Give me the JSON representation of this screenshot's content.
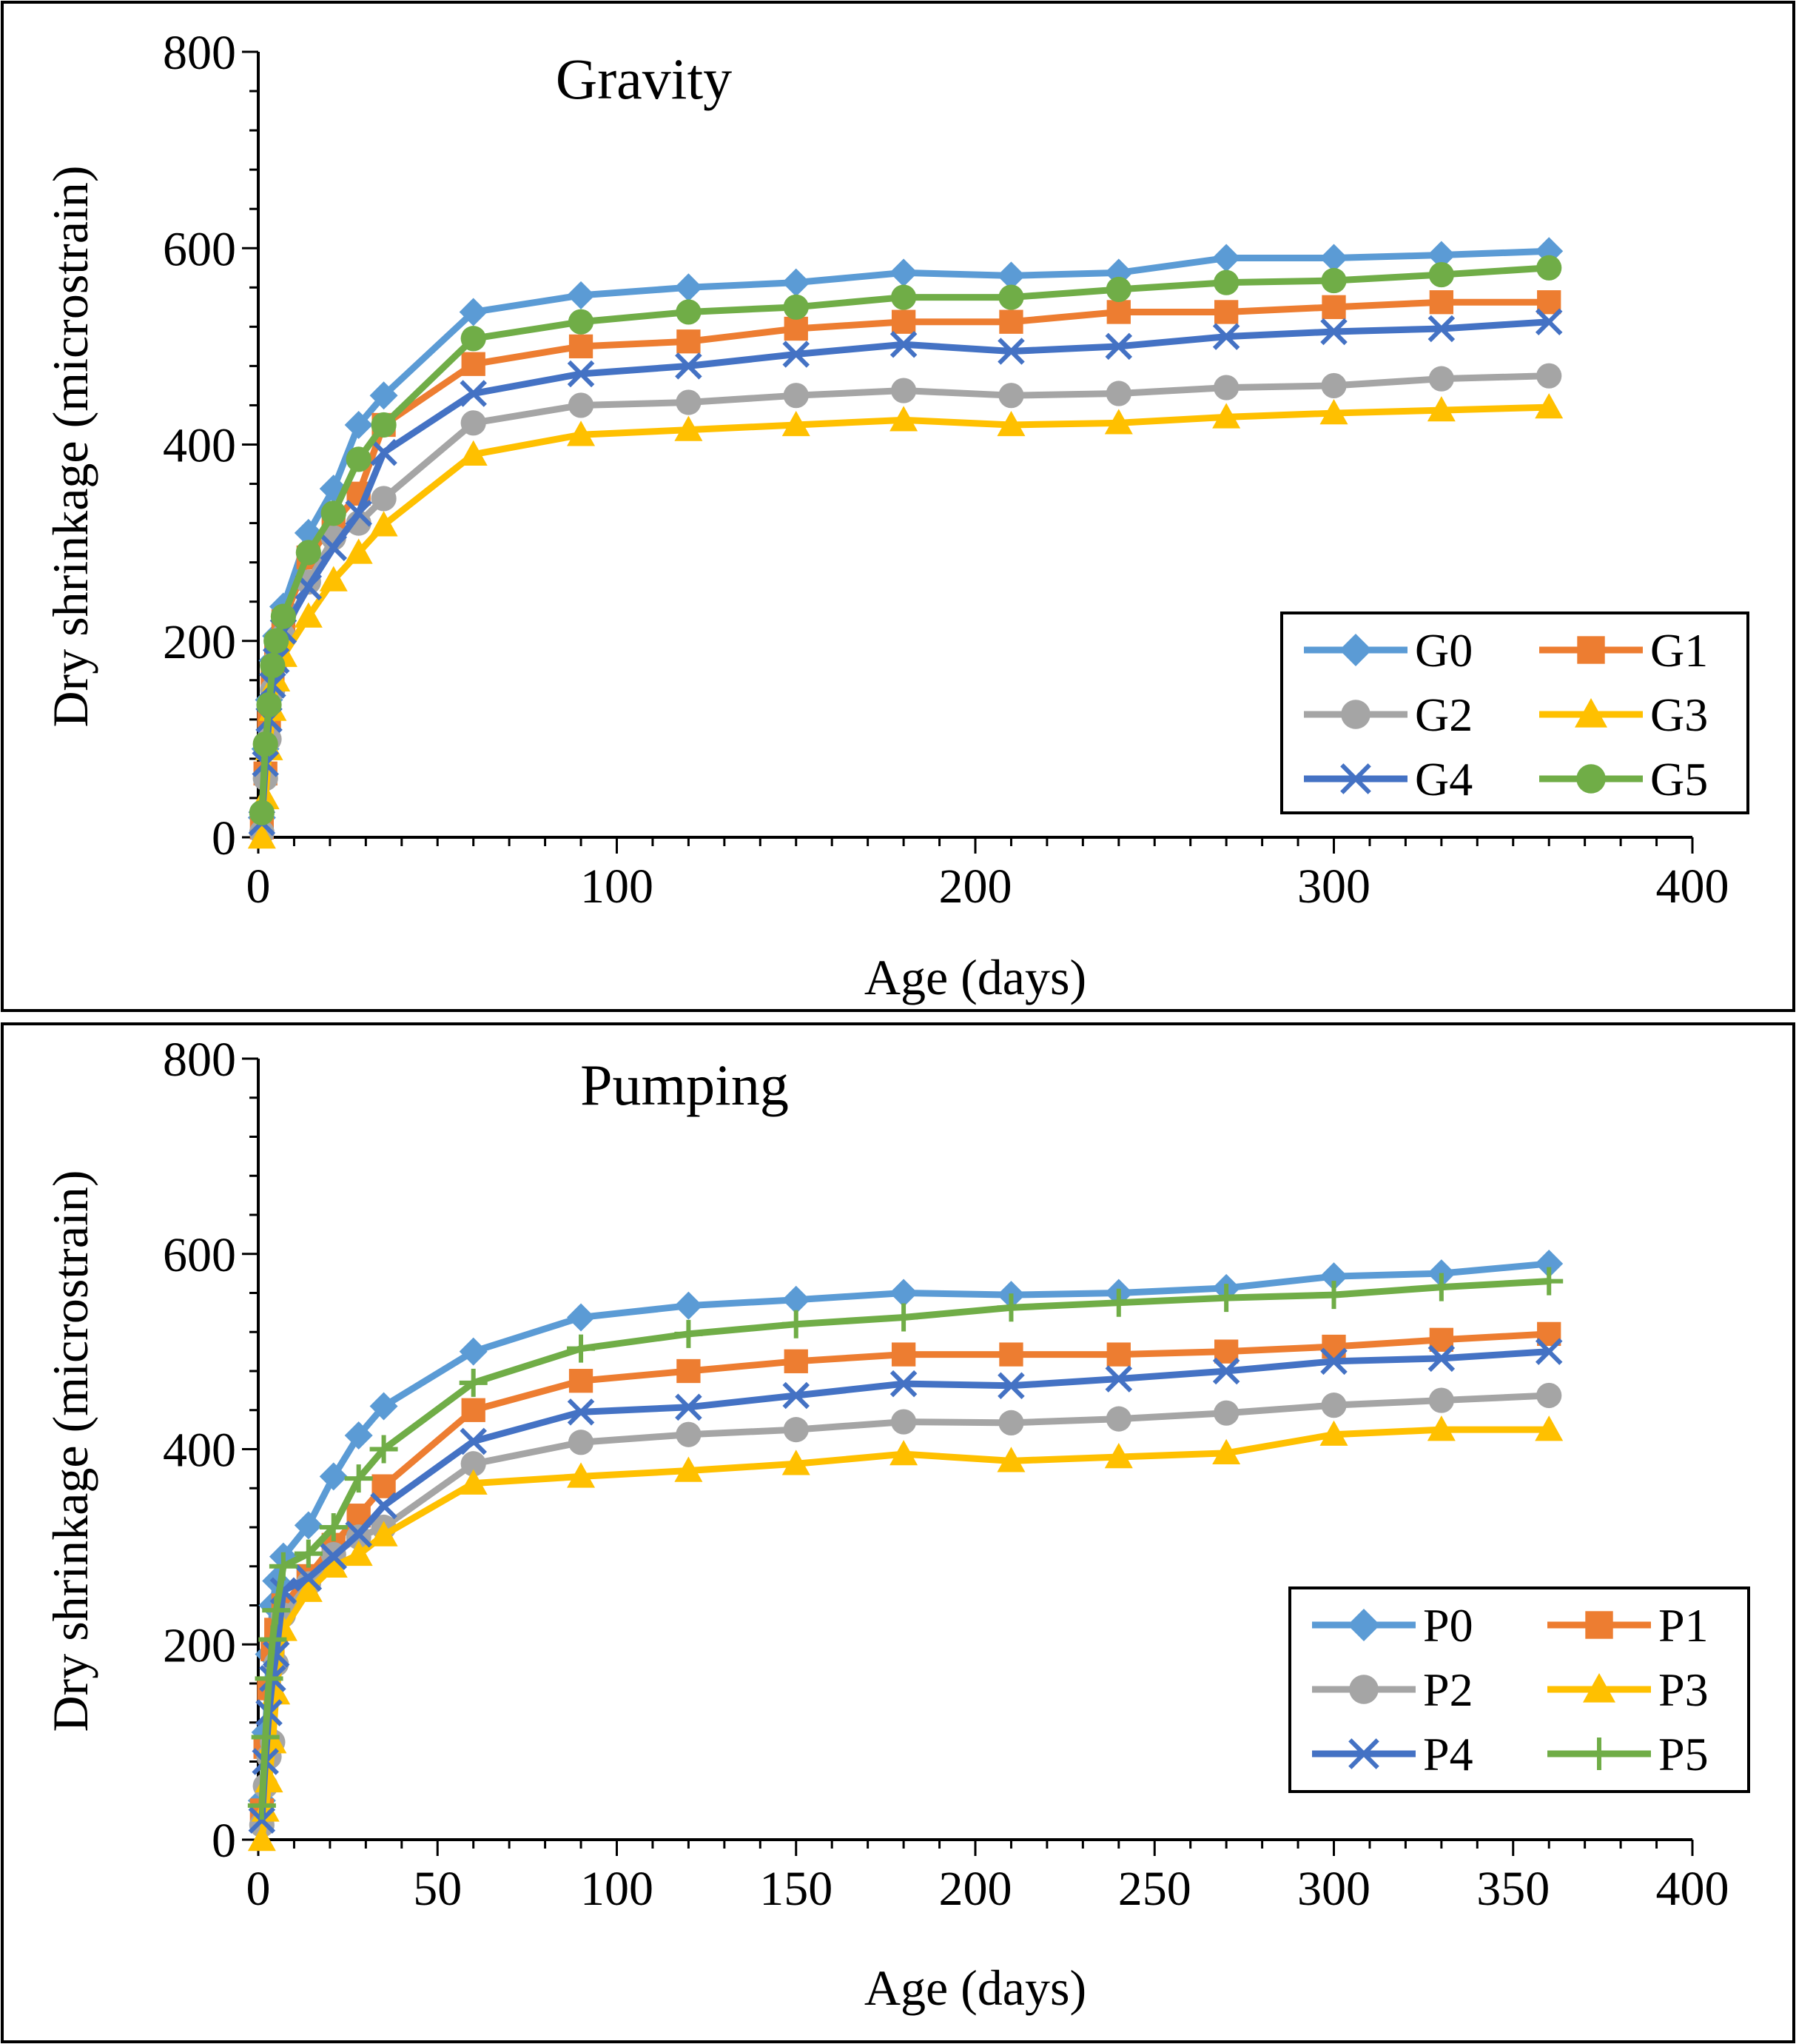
{
  "chart_data": [
    {
      "type": "line",
      "title": "Gravity",
      "xlabel": "Age (days)",
      "ylabel": "Dry shrinkage (microstrain)",
      "xlim": [
        0,
        400
      ],
      "ylim": [
        0,
        800
      ],
      "xticks": [
        0,
        100,
        200,
        300,
        400
      ],
      "yticks": [
        0,
        200,
        400,
        600,
        800
      ],
      "xtick_labels": [
        "0",
        "100",
        "200",
        "300",
        "400"
      ],
      "ytick_labels": [
        "0",
        "200",
        "400",
        "600",
        "800"
      ],
      "grid": false,
      "legend_position": "bottom-right",
      "x": [
        1,
        2,
        3,
        4,
        5,
        7,
        14,
        21,
        28,
        35,
        60,
        90,
        120,
        150,
        180,
        210,
        240,
        270,
        300,
        330,
        360
      ],
      "series": [
        {
          "name": "G0",
          "color": "#5B9BD5",
          "marker": "diamond",
          "values": [
            20,
            90,
            140,
            180,
            205,
            235,
            310,
            355,
            420,
            450,
            535,
            552,
            560,
            565,
            575,
            572,
            575,
            590,
            590,
            593,
            597
          ]
        },
        {
          "name": "G1",
          "color": "#ED7D31",
          "marker": "square",
          "values": [
            10,
            65,
            120,
            165,
            190,
            220,
            285,
            320,
            350,
            420,
            482,
            500,
            505,
            518,
            525,
            525,
            535,
            535,
            540,
            545,
            545
          ]
        },
        {
          "name": "G2",
          "color": "#A5A5A5",
          "marker": "circle",
          "values": [
            5,
            60,
            100,
            150,
            180,
            205,
            260,
            305,
            320,
            345,
            422,
            440,
            443,
            450,
            455,
            450,
            452,
            458,
            460,
            467,
            470
          ]
        },
        {
          "name": "G3",
          "color": "#FFC000",
          "marker": "triangle",
          "values": [
            0,
            40,
            90,
            130,
            160,
            185,
            225,
            262,
            290,
            318,
            390,
            410,
            415,
            420,
            425,
            420,
            422,
            428,
            432,
            435,
            438
          ]
        },
        {
          "name": "G4",
          "color": "#4472C4",
          "marker": "x",
          "values": [
            15,
            75,
            120,
            155,
            180,
            210,
            255,
            295,
            330,
            392,
            452,
            472,
            480,
            492,
            502,
            495,
            500,
            510,
            515,
            518,
            525
          ]
        },
        {
          "name": "G5",
          "color": "#70AD47",
          "marker": "circle",
          "values": [
            25,
            95,
            135,
            175,
            200,
            225,
            290,
            330,
            385,
            420,
            508,
            525,
            535,
            540,
            550,
            550,
            558,
            565,
            567,
            573,
            580
          ]
        }
      ]
    },
    {
      "type": "line",
      "title": "Pumping",
      "xlabel": "Age (days)",
      "ylabel": "Dry shrinkage (microstrain)",
      "xlim": [
        0,
        400
      ],
      "ylim": [
        0,
        800
      ],
      "xticks": [
        0,
        50,
        100,
        150,
        200,
        250,
        300,
        350,
        400
      ],
      "yticks": [
        0,
        200,
        400,
        600,
        800
      ],
      "xtick_labels": [
        "0",
        "50",
        "100",
        "150",
        "200",
        "250",
        "300",
        "350",
        "400"
      ],
      "ytick_labels": [
        "0",
        "200",
        "400",
        "600",
        "800"
      ],
      "grid": false,
      "legend_position": "bottom-right",
      "x": [
        1,
        2,
        3,
        4,
        5,
        7,
        14,
        21,
        28,
        35,
        60,
        90,
        120,
        150,
        180,
        210,
        240,
        270,
        300,
        330,
        360
      ],
      "series": [
        {
          "name": "P0",
          "color": "#5B9BD5",
          "marker": "diamond",
          "values": [
            40,
            110,
            190,
            240,
            265,
            290,
            322,
            372,
            414,
            444,
            500,
            535,
            547,
            553,
            560,
            558,
            560,
            565,
            577,
            580,
            590
          ]
        },
        {
          "name": "P1",
          "color": "#ED7D31",
          "marker": "square",
          "values": [
            30,
            95,
            155,
            195,
            215,
            240,
            270,
            302,
            332,
            362,
            440,
            470,
            480,
            490,
            497,
            497,
            497,
            500,
            505,
            512,
            518
          ]
        },
        {
          "name": "P2",
          "color": "#A5A5A5",
          "marker": "circle",
          "values": [
            15,
            55,
            85,
            100,
            180,
            230,
            262,
            292,
            310,
            320,
            385,
            407,
            415,
            420,
            428,
            427,
            431,
            437,
            445,
            450,
            455
          ]
        },
        {
          "name": "P3",
          "color": "#FFC000",
          "marker": "triangle",
          "values": [
            0,
            30,
            60,
            100,
            150,
            215,
            255,
            280,
            292,
            312,
            365,
            372,
            378,
            385,
            395,
            388,
            392,
            396,
            415,
            420,
            420
          ]
        },
        {
          "name": "P4",
          "color": "#4472C4",
          "marker": "x",
          "values": [
            20,
            80,
            130,
            165,
            190,
            255,
            268,
            290,
            313,
            342,
            408,
            438,
            443,
            455,
            467,
            465,
            472,
            480,
            490,
            493,
            500
          ]
        },
        {
          "name": "P5",
          "color": "#70AD47",
          "marker": "plus",
          "values": [
            35,
            105,
            165,
            205,
            235,
            280,
            293,
            320,
            370,
            400,
            468,
            503,
            518,
            528,
            535,
            545,
            550,
            555,
            558,
            566,
            572
          ]
        }
      ]
    }
  ]
}
